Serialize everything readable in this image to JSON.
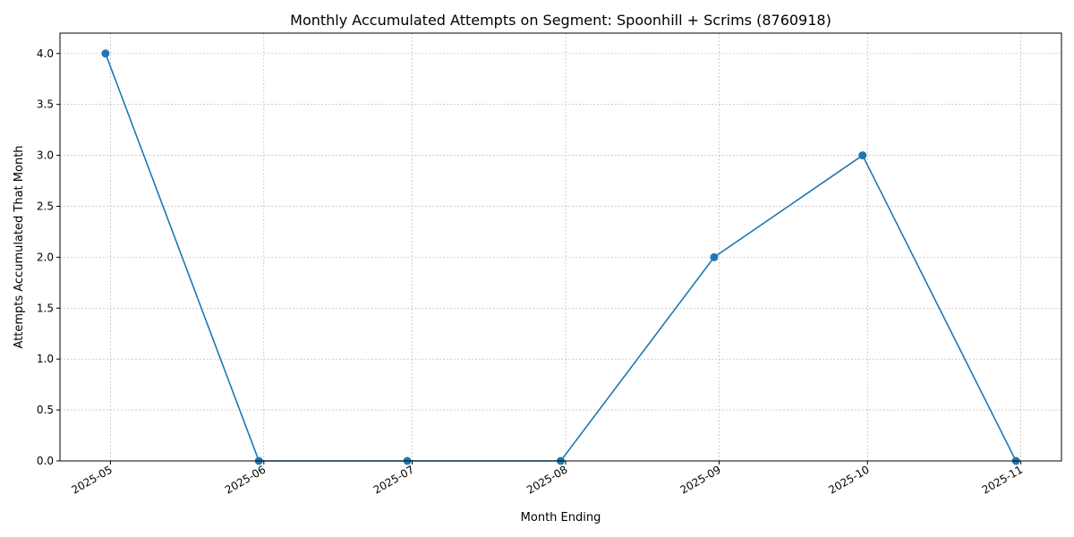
{
  "chart_data": {
    "type": "line",
    "title": "Monthly Accumulated Attempts on Segment: Spoonhill + Scrims (8760918)",
    "xlabel": "Month Ending",
    "ylabel": "Attempts Accumulated That Month",
    "x_tick_labels": [
      "2025-05",
      "2025-06",
      "2025-07",
      "2025-08",
      "2025-09",
      "2025-10",
      "2025-11"
    ],
    "y_tick_labels": [
      "0.0",
      "0.5",
      "1.0",
      "1.5",
      "2.0",
      "2.5",
      "3.0",
      "3.5",
      "4.0"
    ],
    "ylim": [
      0,
      4.2
    ],
    "grid": true,
    "legend": false,
    "series": [
      {
        "color": "#1f77b4",
        "marker": "circle",
        "points": [
          {
            "x": "2025-04-30",
            "y": 4
          },
          {
            "x": "2025-05-31",
            "y": 0
          },
          {
            "x": "2025-06-30",
            "y": 0
          },
          {
            "x": "2025-07-31",
            "y": 0
          },
          {
            "x": "2025-08-31",
            "y": 2
          },
          {
            "x": "2025-09-30",
            "y": 3
          },
          {
            "x": "2025-10-31",
            "y": 0
          }
        ]
      }
    ]
  }
}
